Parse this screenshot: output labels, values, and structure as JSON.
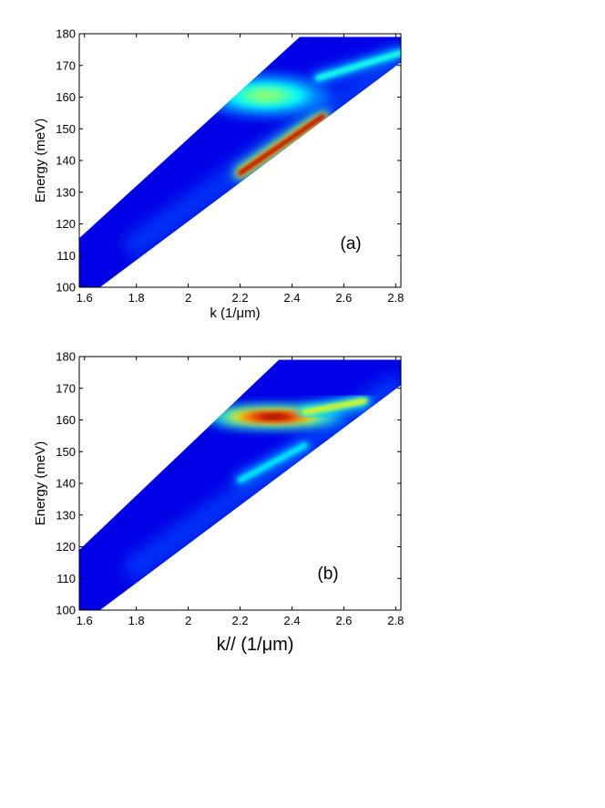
{
  "chart_data": [
    {
      "type": "heatmap",
      "panel_label": "(a)",
      "xlabel": "k  (1/μm)",
      "ylabel": "Energy (meV)",
      "xlim": [
        1.58,
        2.82
      ],
      "ylim": [
        100,
        180
      ],
      "x_ticks": [
        "1.6",
        "1.8",
        "2",
        "2.2",
        "2.4",
        "2.6",
        "2.8"
      ],
      "y_ticks": [
        "100",
        "110",
        "120",
        "130",
        "140",
        "150",
        "160",
        "170",
        "180"
      ],
      "colormap": "jet",
      "grid": false,
      "filled_region": {
        "upper_edge": [
          [
            1.58,
            115.5
          ],
          [
            2.43,
            179
          ]
        ],
        "lower_edge": [
          [
            1.66,
            100
          ],
          [
            2.82,
            171
          ]
        ],
        "top_cap": 179
      },
      "features": [
        {
          "kind": "bright-streak",
          "from": [
            2.2,
            136
          ],
          "to": [
            2.52,
            154
          ],
          "peak_intensity": 1.0
        },
        {
          "kind": "broad-blob",
          "center": [
            2.3,
            160.5
          ],
          "spread_k": 0.16,
          "spread_e": 3.5,
          "peak_intensity": 0.45
        },
        {
          "kind": "faint-band",
          "from": [
            2.5,
            166
          ],
          "to": [
            2.82,
            174
          ],
          "peak_intensity": 0.35
        }
      ]
    },
    {
      "type": "heatmap",
      "panel_label": "(b)",
      "xlabel": "k// (1/μm)",
      "ylabel": "Energy (meV)",
      "xlim": [
        1.58,
        2.82
      ],
      "ylim": [
        100,
        180
      ],
      "x_ticks": [
        "1.6",
        "1.8",
        "2",
        "2.2",
        "2.4",
        "2.6",
        "2.8"
      ],
      "y_ticks": [
        "100",
        "110",
        "120",
        "130",
        "140",
        "150",
        "160",
        "170",
        "180"
      ],
      "colormap": "jet",
      "grid": false,
      "filled_region": {
        "upper_edge": [
          [
            1.58,
            119
          ],
          [
            2.35,
            179
          ]
        ],
        "lower_edge": [
          [
            1.66,
            100
          ],
          [
            2.82,
            171
          ]
        ],
        "top_cap": 179
      },
      "features": [
        {
          "kind": "bright-blob",
          "center": [
            2.33,
            161
          ],
          "spread_k": 0.17,
          "spread_e": 1.8,
          "peak_intensity": 1.0
        },
        {
          "kind": "bright-tail",
          "from": [
            2.45,
            162.5
          ],
          "to": [
            2.68,
            166
          ],
          "peak_intensity": 0.6
        },
        {
          "kind": "weak-streak",
          "from": [
            2.2,
            141
          ],
          "to": [
            2.45,
            152
          ],
          "peak_intensity": 0.3
        }
      ]
    }
  ]
}
